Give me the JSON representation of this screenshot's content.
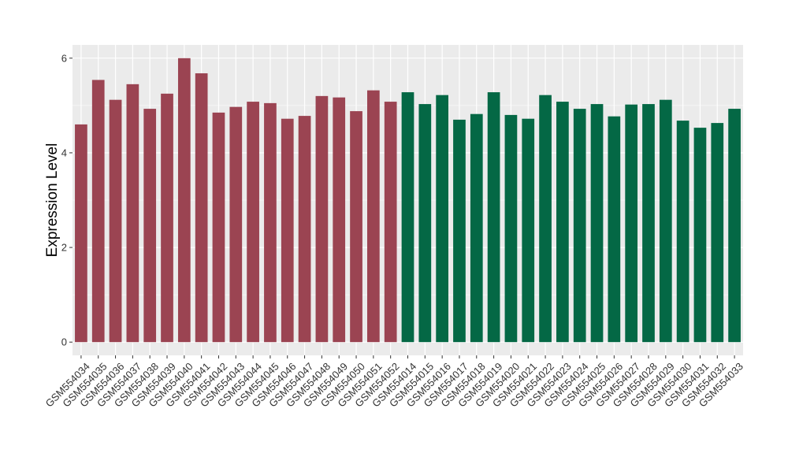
{
  "chart_data": {
    "type": "bar",
    "title": "",
    "xlabel": "",
    "ylabel": "Expression Level",
    "ylim": [
      -0.28,
      6.28
    ],
    "yticks": [
      0,
      2,
      4,
      6
    ],
    "grid": true,
    "legend": "none",
    "categories": [
      "GSM554034",
      "GSM554035",
      "GSM554036",
      "GSM554037",
      "GSM554038",
      "GSM554039",
      "GSM554040",
      "GSM554041",
      "GSM554042",
      "GSM554043",
      "GSM554044",
      "GSM554045",
      "GSM554046",
      "GSM554047",
      "GSM554048",
      "GSM554049",
      "GSM554050",
      "GSM554051",
      "GSM554052",
      "GSM554014",
      "GSM554015",
      "GSM554016",
      "GSM554017",
      "GSM554018",
      "GSM554019",
      "GSM554020",
      "GSM554021",
      "GSM554022",
      "GSM554023",
      "GSM554024",
      "GSM554025",
      "GSM554026",
      "GSM554027",
      "GSM554028",
      "GSM554029",
      "GSM554030",
      "GSM554031",
      "GSM554032",
      "GSM554033"
    ],
    "values": [
      4.6,
      5.54,
      5.12,
      5.45,
      4.93,
      5.25,
      6.0,
      5.68,
      4.85,
      4.97,
      5.08,
      5.05,
      4.72,
      4.78,
      5.2,
      5.17,
      4.88,
      5.32,
      5.08,
      5.28,
      5.03,
      5.22,
      4.7,
      4.82,
      5.28,
      4.8,
      4.72,
      5.22,
      5.08,
      4.93,
      5.03,
      4.77,
      5.02,
      5.03,
      5.12,
      4.68,
      4.53,
      4.63,
      4.93
    ],
    "colors": [
      "#9b4452",
      "#9b4452",
      "#9b4452",
      "#9b4452",
      "#9b4452",
      "#9b4452",
      "#9b4452",
      "#9b4452",
      "#9b4452",
      "#9b4452",
      "#9b4452",
      "#9b4452",
      "#9b4452",
      "#9b4452",
      "#9b4452",
      "#9b4452",
      "#9b4452",
      "#9b4452",
      "#9b4452",
      "#046845",
      "#046845",
      "#046845",
      "#046845",
      "#046845",
      "#046845",
      "#046845",
      "#046845",
      "#046845",
      "#046845",
      "#046845",
      "#046845",
      "#046845",
      "#046845",
      "#046845",
      "#046845",
      "#046845",
      "#046845",
      "#046845",
      "#046845"
    ],
    "panel_background": "#ebebeb",
    "grid_color": "#ffffff"
  }
}
